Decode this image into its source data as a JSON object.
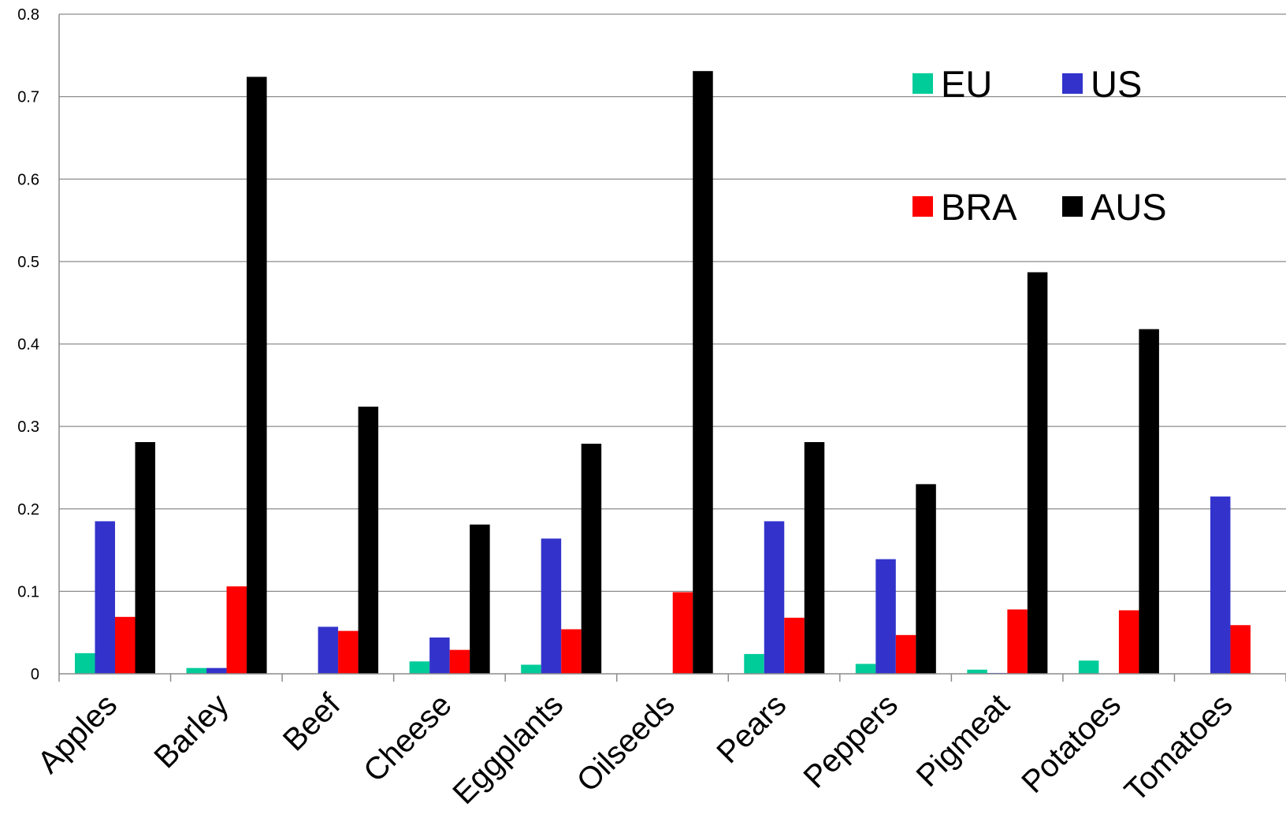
{
  "chart_data": {
    "type": "bar",
    "categories": [
      "Apples",
      "Barley",
      "Beef",
      "Cheese",
      "Eggplants",
      "Oilseeds",
      "Pears",
      "Peppers",
      "Pigmeat",
      "Potatoes",
      "Tomatoes"
    ],
    "series": [
      {
        "name": "EU",
        "color": "#00cc99",
        "values": [
          0.025,
          0.007,
          0,
          0.015,
          0.011,
          0,
          0.024,
          0.012,
          0.005,
          0.016,
          0
        ]
      },
      {
        "name": "US",
        "color": "#3333cc",
        "values": [
          0.185,
          0.007,
          0.057,
          0.044,
          0.164,
          0,
          0.185,
          0.139,
          0.001,
          0,
          0.215
        ]
      },
      {
        "name": "BRA",
        "color": "#ff0000",
        "values": [
          0.069,
          0.106,
          0.052,
          0.029,
          0.054,
          0.099,
          0.068,
          0.047,
          0.078,
          0.077,
          0.059
        ]
      },
      {
        "name": "AUS",
        "color": "#000000",
        "values": [
          0.281,
          0.724,
          0.324,
          0.181,
          0.279,
          0.731,
          0.281,
          0.23,
          0.487,
          0.418,
          0
        ]
      }
    ],
    "yticks": [
      "0",
      "0.1",
      "0.2",
      "0.3",
      "0.4",
      "0.5",
      "0.6",
      "0.7",
      "0.8"
    ],
    "ylim": [
      0,
      0.8
    ],
    "title": "",
    "xlabel": "",
    "ylabel": "",
    "grid": true,
    "legend_position": "top-right"
  }
}
